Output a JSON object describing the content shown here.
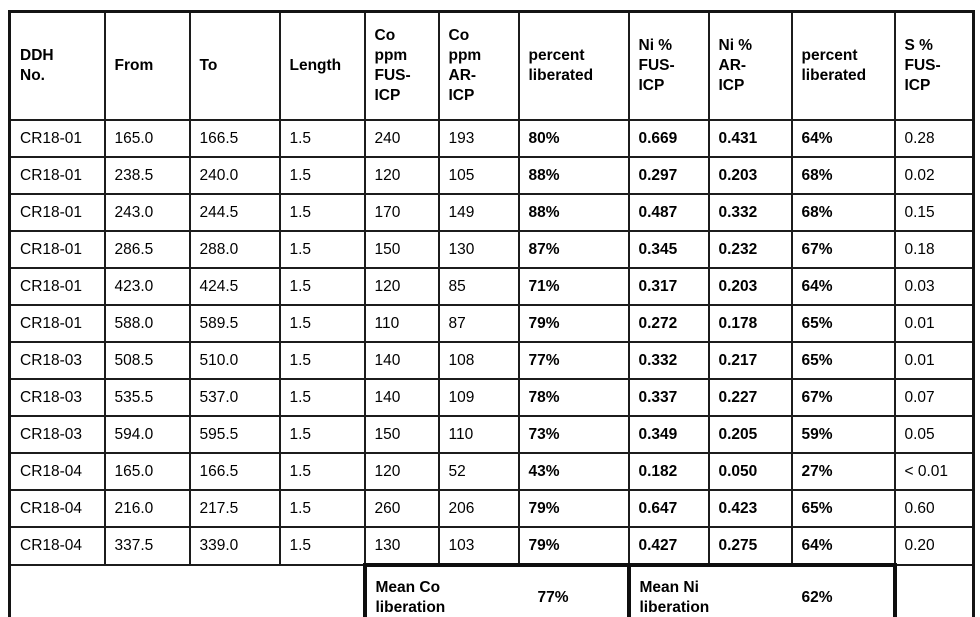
{
  "table": {
    "columns": [
      {
        "key": "ddh",
        "label": "DDH\nNo."
      },
      {
        "key": "from",
        "label": "From"
      },
      {
        "key": "to",
        "label": "To"
      },
      {
        "key": "length",
        "label": "Length"
      },
      {
        "key": "co_fus",
        "label": "Co\nppm\nFUS-\nICP"
      },
      {
        "key": "co_ar",
        "label": "Co\nppm\nAR-\nICP"
      },
      {
        "key": "co_lib",
        "label": "percent\nliberated"
      },
      {
        "key": "ni_fus",
        "label": "Ni %\nFUS-\nICP"
      },
      {
        "key": "ni_ar",
        "label": "Ni %\nAR-\nICP"
      },
      {
        "key": "ni_lib",
        "label": "percent\nliberated"
      },
      {
        "key": "s_fus",
        "label": "S %\nFUS-\nICP"
      }
    ],
    "rows": [
      [
        "CR18-01",
        "165.0",
        "166.5",
        "1.5",
        "240",
        "193",
        "80%",
        "0.669",
        "0.431",
        "64%",
        "0.28"
      ],
      [
        "CR18-01",
        "238.5",
        "240.0",
        "1.5",
        "120",
        "105",
        "88%",
        "0.297",
        "0.203",
        "68%",
        "0.02"
      ],
      [
        "CR18-01",
        "243.0",
        "244.5",
        "1.5",
        "170",
        "149",
        "88%",
        "0.487",
        "0.332",
        "68%",
        "0.15"
      ],
      [
        "CR18-01",
        "286.5",
        "288.0",
        "1.5",
        "150",
        "130",
        "87%",
        "0.345",
        "0.232",
        "67%",
        "0.18"
      ],
      [
        "CR18-01",
        "423.0",
        "424.5",
        "1.5",
        "120",
        "85",
        "71%",
        "0.317",
        "0.203",
        "64%",
        "0.03"
      ],
      [
        "CR18-01",
        "588.0",
        "589.5",
        "1.5",
        "110",
        "87",
        "79%",
        "0.272",
        "0.178",
        "65%",
        "0.01"
      ],
      [
        "CR18-03",
        "508.5",
        "510.0",
        "1.5",
        "140",
        "108",
        "77%",
        "0.332",
        "0.217",
        "65%",
        "0.01"
      ],
      [
        "CR18-03",
        "535.5",
        "537.0",
        "1.5",
        "140",
        "109",
        "78%",
        "0.337",
        "0.227",
        "67%",
        "0.07"
      ],
      [
        "CR18-03",
        "594.0",
        "595.5",
        "1.5",
        "150",
        "110",
        "73%",
        "0.349",
        "0.205",
        "59%",
        "0.05"
      ],
      [
        "CR18-04",
        "165.0",
        "166.5",
        "1.5",
        "120",
        "52",
        "43%",
        "0.182",
        "0.050",
        "27%",
        "< 0.01"
      ],
      [
        "CR18-04",
        "216.0",
        "217.5",
        "1.5",
        "260",
        "206",
        "79%",
        "0.647",
        "0.423",
        "65%",
        "0.60"
      ],
      [
        "CR18-04",
        "337.5",
        "339.0",
        "1.5",
        "130",
        "103",
        "79%",
        "0.427",
        "0.275",
        "64%",
        "0.20"
      ]
    ]
  },
  "summary": {
    "mean_co_label": "Mean Co\nliberation",
    "mean_co_value": "77%",
    "mean_ni_label": "Mean Ni\nliberation",
    "mean_ni_value": "62%"
  },
  "colors": {
    "text": "#000000",
    "border": "#1c1c1c",
    "thick_border": "#0e0e0e",
    "background": "#ffffff"
  }
}
